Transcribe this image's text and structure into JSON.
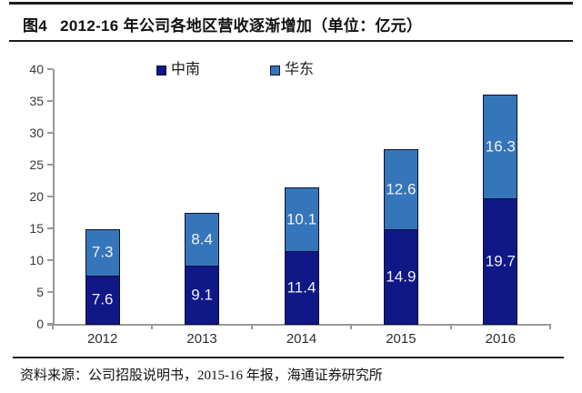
{
  "header": {
    "figure_label": "图4",
    "title": "2012-16 年公司各地区营收逐渐增加（单位：亿元）"
  },
  "footer": {
    "source": "资料来源：公司招股说明书，2015-16 年报，海通证券研究所"
  },
  "colors": {
    "series_zhongnan": "#0f1886",
    "series_huadong": "#3576ba",
    "bar_border": "#0c0e33",
    "axis": "#999999",
    "bar_label_text": "#f1f1f6",
    "rule": "#1c1c1c"
  },
  "chart_data": {
    "type": "bar",
    "stacked": true,
    "title": "图4 2012-16 年公司各地区营收逐渐增加（单位：亿元）",
    "categories": [
      "2012",
      "2013",
      "2014",
      "2015",
      "2016"
    ],
    "series": [
      {
        "name": "中南",
        "color": "#0f1886",
        "values": [
          7.6,
          9.1,
          11.4,
          14.9,
          19.7
        ]
      },
      {
        "name": "华东",
        "color": "#3576ba",
        "values": [
          7.3,
          8.4,
          10.1,
          12.6,
          16.3
        ]
      }
    ],
    "totals": [
      14.9,
      17.5,
      21.5,
      27.5,
      36.0
    ],
    "xlabel": "",
    "ylabel": "",
    "ylim": [
      0,
      40
    ],
    "ytick_step": 5,
    "yticks": [
      0,
      5,
      10,
      15,
      20,
      25,
      30,
      35,
      40
    ],
    "grid": false,
    "legend_position": "top-center",
    "bar_label_format": "one-decimal, white, centered in segment"
  }
}
